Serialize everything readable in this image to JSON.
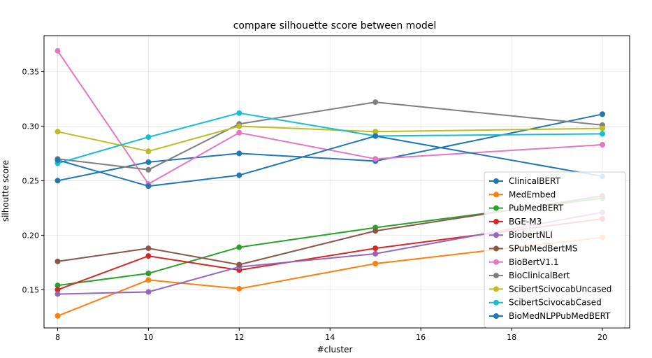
{
  "chart_data": {
    "type": "line",
    "title": "compare silhouette score between model",
    "xlabel": "#cluster",
    "ylabel": "silhoutte score",
    "xlim": [
      7.7,
      20.6
    ],
    "ylim": [
      0.115,
      0.383
    ],
    "xticks": [
      8,
      10,
      12,
      14,
      16,
      18,
      20
    ],
    "yticks": [
      0.15,
      0.2,
      0.25,
      0.3,
      0.35
    ],
    "ytick_labels": [
      "0.15",
      "0.20",
      "0.25",
      "0.30",
      "0.35"
    ],
    "grid": true,
    "legend_position": "lower right",
    "x": [
      8,
      10,
      12,
      15,
      20
    ],
    "series": [
      {
        "name": "ClinicalBERT",
        "color": "#1f77b4",
        "values": [
          0.25,
          0.267,
          0.275,
          0.268,
          0.311
        ]
      },
      {
        "name": "MedEmbed",
        "color": "#ff7f0e",
        "values": [
          0.126,
          0.159,
          0.151,
          0.174,
          0.198
        ]
      },
      {
        "name": "PubMedBERT",
        "color": "#2ca02c",
        "values": [
          0.154,
          0.165,
          0.189,
          0.207,
          0.234
        ]
      },
      {
        "name": "BGE-M3",
        "color": "#d62728",
        "values": [
          0.15,
          0.181,
          0.168,
          0.188,
          0.215
        ]
      },
      {
        "name": "BiobertNLI",
        "color": "#9467bd",
        "values": [
          0.146,
          0.148,
          0.171,
          0.183,
          0.221
        ]
      },
      {
        "name": "SPubMedBertMS",
        "color": "#8c564b",
        "values": [
          0.176,
          0.188,
          0.173,
          0.204,
          0.236
        ]
      },
      {
        "name": "BioBertV1.1",
        "color": "#e377c2",
        "values": [
          0.369,
          0.247,
          0.294,
          0.27,
          0.283
        ]
      },
      {
        "name": "BioClinicalBert",
        "color": "#7f7f7f",
        "values": [
          0.27,
          0.26,
          0.302,
          0.322,
          0.301
        ]
      },
      {
        "name": "ScibertScivocabUncased",
        "color": "#bcbd22",
        "values": [
          0.295,
          0.277,
          0.3,
          0.295,
          0.298
        ]
      },
      {
        "name": "ScibertScivocabCased",
        "color": "#17becf",
        "values": [
          0.266,
          0.29,
          0.312,
          0.291,
          0.293
        ]
      },
      {
        "name": "BioMedNLPPubMedBERT",
        "color": "#1f77b4",
        "values": [
          0.269,
          0.245,
          0.255,
          0.291,
          0.254
        ]
      }
    ]
  }
}
